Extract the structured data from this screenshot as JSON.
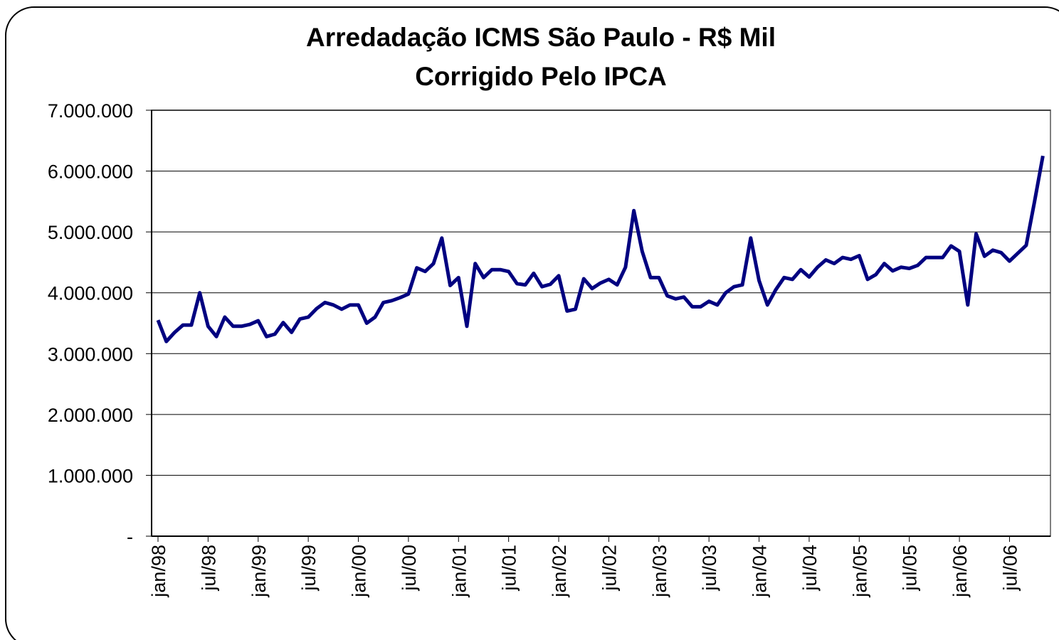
{
  "chart_data": {
    "type": "line",
    "title": "Arredadação ICMS São Paulo - R$ Mil",
    "subtitle": "Corrigido Pelo IPCA",
    "categories": [
      "jan/98",
      null,
      null,
      null,
      null,
      null,
      "jul/98",
      null,
      null,
      null,
      null,
      null,
      "jan/99",
      null,
      null,
      null,
      null,
      null,
      "jul/99",
      null,
      null,
      null,
      null,
      null,
      "jan/00",
      null,
      null,
      null,
      null,
      null,
      "jul/00",
      null,
      null,
      null,
      null,
      null,
      "jan/01",
      null,
      null,
      null,
      null,
      null,
      "jul/01",
      null,
      null,
      null,
      null,
      null,
      "jan/02",
      null,
      null,
      null,
      null,
      null,
      "jul/02",
      null,
      null,
      null,
      null,
      null,
      "jan/03",
      null,
      null,
      null,
      null,
      null,
      "jul/03",
      null,
      null,
      null,
      null,
      null,
      "jan/04",
      null,
      null,
      null,
      null,
      null,
      "jul/04",
      null,
      null,
      null,
      null,
      null,
      "jan/05",
      null,
      null,
      null,
      null,
      null,
      "jul/05",
      null,
      null,
      null,
      null,
      null,
      "jan/06",
      null,
      null,
      null,
      null,
      null,
      "jul/06",
      null,
      null,
      null,
      null
    ],
    "series": [
      {
        "name": "ICMS",
        "color": "#000080",
        "values": [
          3550000,
          3200000,
          3350000,
          3470000,
          3470000,
          4000000,
          3450000,
          3280000,
          3600000,
          3450000,
          3450000,
          3480000,
          3540000,
          3280000,
          3320000,
          3510000,
          3350000,
          3570000,
          3600000,
          3740000,
          3840000,
          3800000,
          3730000,
          3800000,
          3800000,
          3500000,
          3600000,
          3840000,
          3870000,
          3920000,
          3980000,
          4410000,
          4350000,
          4480000,
          4900000,
          4120000,
          4250000,
          3450000,
          4480000,
          4250000,
          4380000,
          4380000,
          4350000,
          4150000,
          4130000,
          4320000,
          4100000,
          4140000,
          4280000,
          3700000,
          3730000,
          4230000,
          4070000,
          4160000,
          4220000,
          4130000,
          4420000,
          5350000,
          4680000,
          4250000,
          4250000,
          3950000,
          3900000,
          3930000,
          3770000,
          3770000,
          3860000,
          3800000,
          4000000,
          4100000,
          4130000,
          4900000,
          4200000,
          3800000,
          4050000,
          4250000,
          4220000,
          4380000,
          4260000,
          4420000,
          4540000,
          4480000,
          4580000,
          4550000,
          4610000,
          4220000,
          4300000,
          4480000,
          4360000,
          4420000,
          4400000,
          4450000,
          4580000,
          4580000,
          4580000,
          4770000,
          4680000,
          3800000,
          4970000,
          4600000,
          4700000,
          4660000,
          4520000,
          4650000,
          4780000,
          5500000,
          6250000
        ]
      }
    ],
    "ylim": [
      0,
      7000000
    ],
    "yticks": [
      {
        "value": 0,
        "label": "-"
      },
      {
        "value": 1000000,
        "label": "1.000.000"
      },
      {
        "value": 2000000,
        "label": "2.000.000"
      },
      {
        "value": 3000000,
        "label": "3.000.000"
      },
      {
        "value": 4000000,
        "label": "4.000.000"
      },
      {
        "value": 5000000,
        "label": "5.000.000"
      },
      {
        "value": 6000000,
        "label": "6.000.000"
      },
      {
        "value": 7000000,
        "label": "7.000.000"
      }
    ],
    "grid": true
  }
}
